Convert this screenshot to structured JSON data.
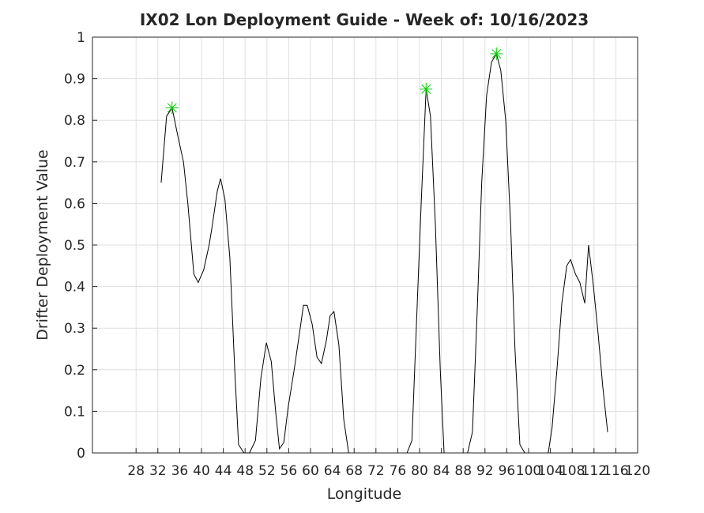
{
  "chart_data": {
    "type": "line",
    "title": "IX02 Lon Deployment Guide - Week of: 10/16/2023",
    "x_label": "Longitude",
    "y_label": "Drifter Deployment Value",
    "xlim": [
      20,
      120
    ],
    "ylim": [
      0,
      1
    ],
    "xticks": [
      28,
      32,
      36,
      40,
      44,
      48,
      52,
      56,
      60,
      64,
      68,
      72,
      76,
      80,
      84,
      88,
      92,
      96,
      100,
      104,
      108,
      112,
      116,
      120
    ],
    "yticks": [
      0,
      0.1,
      0.2,
      0.3,
      0.4,
      0.5,
      0.6,
      0.7,
      0.8,
      0.9,
      1
    ],
    "grid": true,
    "series": [
      {
        "color": "#000000",
        "x": [
          32.6,
          33.6,
          34.6,
          35.7,
          36.7,
          37.5,
          38.6,
          39.4,
          40.4,
          41.4,
          41.9,
          42.9,
          43.5,
          44.3,
          45.2,
          46.1,
          46.8,
          47.8,
          48.8,
          49.9,
          50.9,
          51.9,
          52.8,
          53.6,
          54.3,
          55.1,
          55.9,
          57.0,
          58.0,
          58.7,
          59.4,
          60.3,
          61.2,
          62.0,
          62.9,
          63.6,
          64.3,
          65.2,
          66.1,
          67.0,
          null,
          77.7,
          78.6,
          79.4,
          80.3,
          81.2,
          82.0,
          82.9,
          83.8,
          84.5,
          null,
          88.8,
          89.7,
          90.6,
          91.4,
          92.3,
          93.2,
          94.1,
          94.9,
          95.8,
          96.7,
          97.5,
          98.4,
          99.3,
          null,
          103.6,
          104.3,
          105.2,
          106.1,
          107.0,
          107.7,
          108.6,
          109.4,
          110.3,
          111.0,
          111.9,
          112.8,
          113.6,
          114.5
        ],
        "values": [
          0.65,
          0.81,
          0.83,
          0.76,
          0.7,
          0.6,
          0.43,
          0.41,
          0.44,
          0.5,
          0.54,
          0.63,
          0.66,
          0.61,
          0.47,
          0.2,
          0.02,
          0.0,
          0.0,
          0.03,
          0.18,
          0.265,
          0.22,
          0.1,
          0.01,
          0.025,
          0.11,
          0.2,
          0.29,
          0.355,
          0.355,
          0.31,
          0.23,
          0.215,
          0.27,
          0.33,
          0.34,
          0.26,
          0.08,
          0.0,
          null,
          0.0,
          0.03,
          0.3,
          0.6,
          0.875,
          0.81,
          0.55,
          0.2,
          0.0,
          null,
          0.0,
          0.05,
          0.35,
          0.65,
          0.86,
          0.94,
          0.96,
          0.92,
          0.8,
          0.55,
          0.25,
          0.02,
          0.0,
          null,
          0.0,
          0.06,
          0.2,
          0.36,
          0.45,
          0.465,
          0.43,
          0.41,
          0.36,
          0.5,
          0.4,
          0.28,
          0.16,
          0.05
        ]
      }
    ],
    "peaks": {
      "color": "#00cc00",
      "x": [
        34.6,
        81.2,
        94.1
      ],
      "values": [
        0.83,
        0.875,
        0.96
      ]
    }
  }
}
